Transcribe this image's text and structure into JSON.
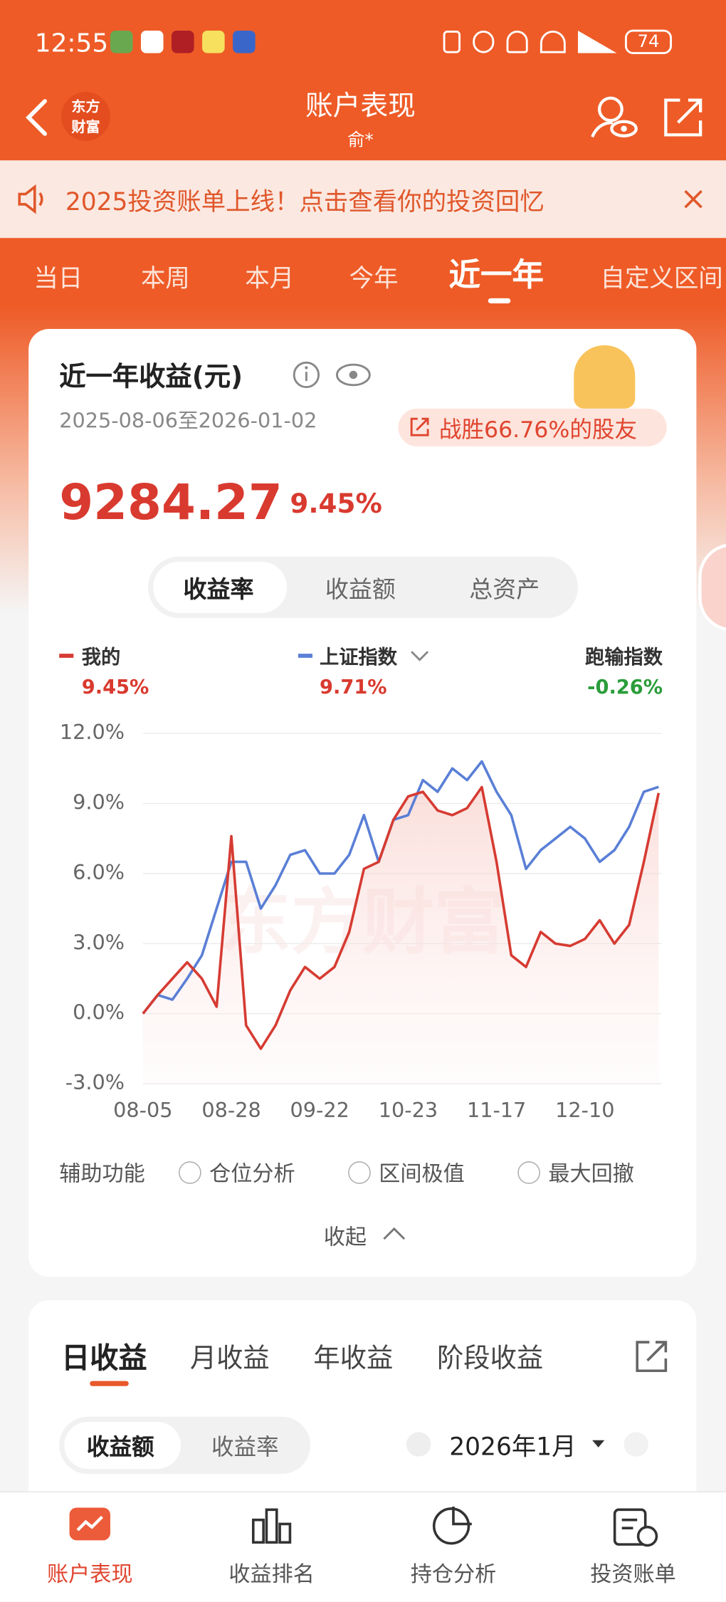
{
  "status_bar": {
    "time": "12:55",
    "battery": "74"
  },
  "header": {
    "logo_lines": [
      "东方",
      "财富"
    ],
    "title": "账户表现",
    "subtitle": "俞*"
  },
  "banner": {
    "text": "2025投资账单上线！点击查看你的投资回忆"
  },
  "period_tabs": {
    "items": [
      "当日",
      "本周",
      "本月",
      "今年",
      "近一年",
      "自定义区间"
    ],
    "active": 4
  },
  "summary": {
    "title": "近一年收益(元)",
    "date_range": "2025-08-06至2026-01-02",
    "beat": "战胜66.76%的股友",
    "amount": "9284.27",
    "rate": "9.45%"
  },
  "segments": {
    "items": [
      "收益率",
      "收益额",
      "总资产"
    ],
    "active": 0
  },
  "legend_values": [
    "9.45%",
    "9.71%"
  ],
  "excess": {
    "label": "跑输指数",
    "value": "-0.26%"
  },
  "chart_data": {
    "type": "line",
    "watermark": "东方财富",
    "categories": [
      "08-05",
      null,
      null,
      null,
      null,
      null,
      "08-28",
      null,
      null,
      null,
      null,
      null,
      "09-22",
      null,
      null,
      null,
      null,
      null,
      "10-23",
      null,
      null,
      null,
      null,
      null,
      "11-17",
      null,
      null,
      null,
      null,
      null,
      "12-10",
      null,
      null,
      null,
      null,
      null
    ],
    "series": [
      {
        "name": "我的",
        "color": "#d63b32",
        "values": [
          0,
          0.8,
          1.5,
          2.2,
          1.5,
          0.3,
          7.6,
          -0.5,
          -1.5,
          -0.5,
          1.0,
          2.0,
          1.5,
          2.0,
          3.5,
          6.2,
          6.5,
          8.3,
          9.3,
          9.5,
          8.7,
          8.5,
          8.8,
          9.7,
          6.5,
          2.5,
          2.0,
          3.5,
          3.0,
          2.9,
          3.2,
          4.0,
          3.0,
          3.8,
          6.5,
          9.45
        ]
      },
      {
        "name": "上证指数",
        "color": "#5a7fd6",
        "values": [
          0,
          0.8,
          0.6,
          1.5,
          2.5,
          4.5,
          6.5,
          6.5,
          4.5,
          5.5,
          6.8,
          7.0,
          6.0,
          6.0,
          6.8,
          8.5,
          6.5,
          8.3,
          8.5,
          10.0,
          9.5,
          10.5,
          10.0,
          10.8,
          9.5,
          8.5,
          6.2,
          7.0,
          7.5,
          8.0,
          7.5,
          6.5,
          7.0,
          8.0,
          9.5,
          9.71
        ]
      }
    ],
    "ylim": [
      -3,
      12
    ],
    "yticks": [
      {
        "value": -3,
        "label": "-3.0%"
      },
      {
        "value": 0,
        "label": "0.0%"
      },
      {
        "value": 3,
        "label": "3.0%"
      },
      {
        "value": 6,
        "label": "6.0%"
      },
      {
        "value": 9,
        "label": "9.0%"
      },
      {
        "value": 12,
        "label": "12.0%"
      }
    ],
    "grid": true
  },
  "aux": {
    "label": "辅助功能",
    "options": [
      "仓位分析",
      "区间极值",
      "最大回撤"
    ],
    "collapse": "收起"
  },
  "daily": {
    "tabs": [
      "日收益",
      "月收益",
      "年收益",
      "阶段收益"
    ],
    "toggle": [
      "收益额",
      "收益率"
    ],
    "month": "2026年1月"
  },
  "bottom_nav": {
    "items": [
      "账户表现",
      "收益排名",
      "持仓分析",
      "投资账单"
    ],
    "active": 0
  }
}
